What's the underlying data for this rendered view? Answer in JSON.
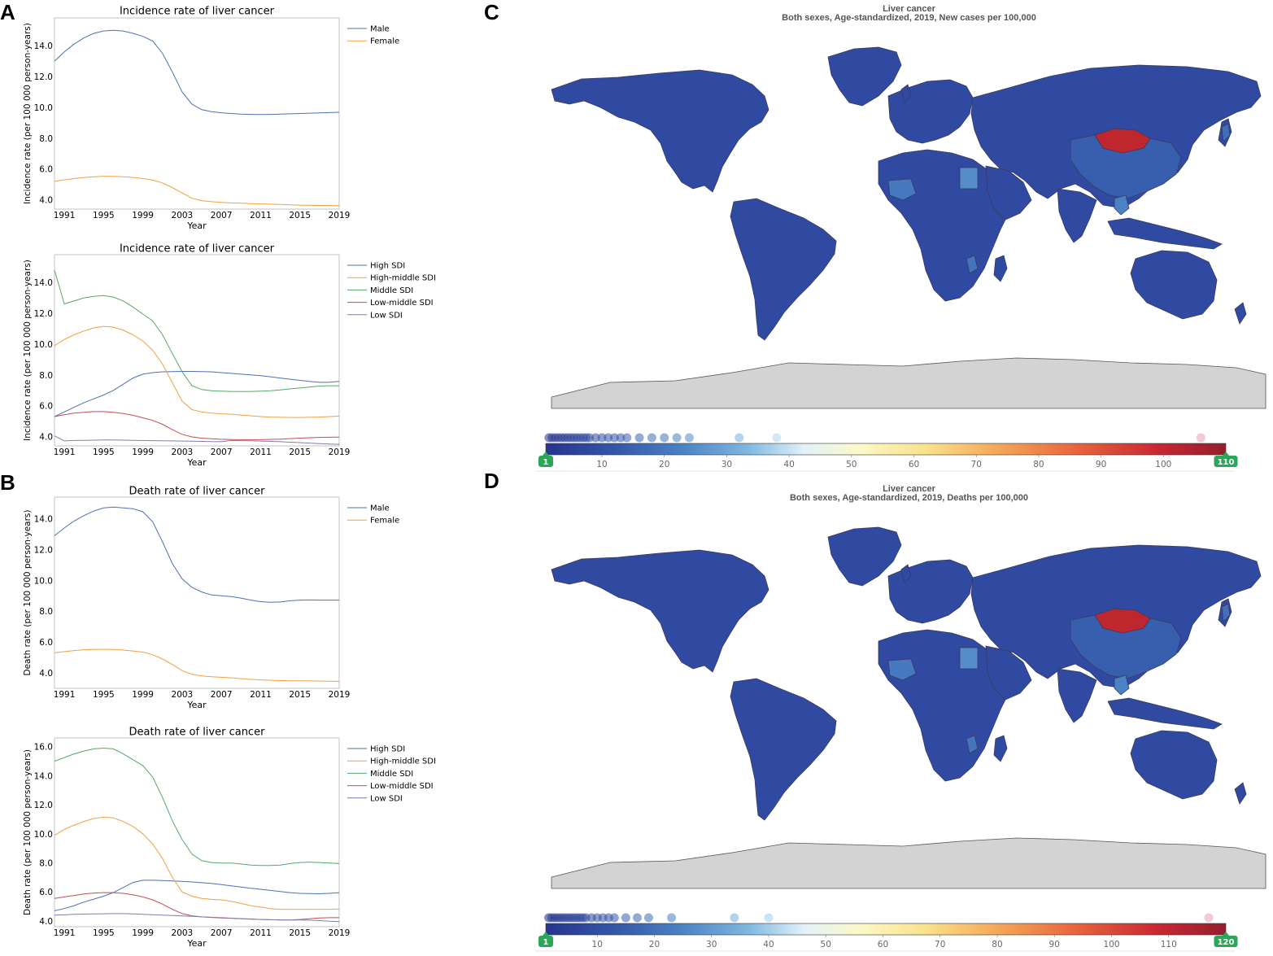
{
  "colors": {
    "high_sdi": "#4c72b0",
    "high_middle_sdi": "#f0a040",
    "middle_sdi": "#55a868",
    "low_middle_sdi": "#c44e52",
    "low_sdi": "#7f7fae",
    "male": "#4c72b0",
    "female": "#f0a040",
    "map_ocean": "#ffffff",
    "map_land_default": "#2f4aa0",
    "map_antarctica": "#d3d3d3",
    "map_mongolia": "#c0262e",
    "badge_green": "#2aa858"
  },
  "panels": {
    "A": "A",
    "B": "B",
    "C": "C",
    "D": "D"
  },
  "chart_data": [
    {
      "id": "a1",
      "type": "line",
      "title": "Incidence rate of liver cancer",
      "xlabel": "Year",
      "ylabel": "Incidence rate (per 100 000 person-years)",
      "xlim": [
        1990,
        2019
      ],
      "ylim": [
        3.4,
        15.8
      ],
      "xticks": [
        1991,
        1995,
        1999,
        2003,
        2007,
        2011,
        2015,
        2019
      ],
      "xtick_labels": [
        "1991",
        "1995",
        "1999",
        "2003",
        "2007",
        "2011",
        "2015",
        "2019"
      ],
      "yticks": [
        4,
        6,
        8,
        10,
        12,
        14
      ],
      "ytick_labels": [
        "4.0",
        "6.0",
        "8.0",
        "10.0",
        "12.0",
        "14.0"
      ],
      "legend": "top-right-outside",
      "x": [
        1990,
        1991,
        1992,
        1993,
        1994,
        1995,
        1996,
        1997,
        1998,
        1999,
        2000,
        2001,
        2002,
        2003,
        2004,
        2005,
        2006,
        2007,
        2008,
        2009,
        2010,
        2011,
        2012,
        2013,
        2014,
        2015,
        2016,
        2017,
        2018,
        2019
      ],
      "series": [
        {
          "name": "Male",
          "color": "male",
          "values": [
            13.0,
            13.6,
            14.1,
            14.5,
            14.8,
            14.95,
            15.0,
            14.95,
            14.8,
            14.6,
            14.3,
            13.5,
            12.3,
            11.0,
            10.2,
            9.85,
            9.72,
            9.65,
            9.6,
            9.56,
            9.54,
            9.53,
            9.54,
            9.56,
            9.58,
            9.6,
            9.62,
            9.64,
            9.66,
            9.68
          ]
        },
        {
          "name": "Female",
          "color": "female",
          "values": [
            5.2,
            5.3,
            5.38,
            5.45,
            5.5,
            5.52,
            5.52,
            5.5,
            5.45,
            5.38,
            5.28,
            5.1,
            4.8,
            4.45,
            4.1,
            3.95,
            3.88,
            3.84,
            3.8,
            3.78,
            3.76,
            3.74,
            3.72,
            3.7,
            3.68,
            3.66,
            3.65,
            3.64,
            3.63,
            3.62
          ]
        }
      ]
    },
    {
      "id": "a2",
      "type": "line",
      "title": "Incidence rate of liver cancer",
      "xlabel": "Year",
      "ylabel": "Incidence rate (per 100 000 person-years)",
      "xlim": [
        1990,
        2019
      ],
      "ylim": [
        3.4,
        15.8
      ],
      "xticks": [
        1991,
        1995,
        1999,
        2003,
        2007,
        2011,
        2015,
        2019
      ],
      "xtick_labels": [
        "1991",
        "1995",
        "1999",
        "2003",
        "2007",
        "2011",
        "2015",
        "2019"
      ],
      "yticks": [
        4,
        6,
        8,
        10,
        12,
        14
      ],
      "ytick_labels": [
        "4.0",
        "6.0",
        "8.0",
        "10.0",
        "12.0",
        "14.0"
      ],
      "legend": "top-right-outside",
      "x": [
        1990,
        1991,
        1992,
        1993,
        1994,
        1995,
        1996,
        1997,
        1998,
        1999,
        2000,
        2001,
        2002,
        2003,
        2004,
        2005,
        2006,
        2007,
        2008,
        2009,
        2010,
        2011,
        2012,
        2013,
        2014,
        2015,
        2016,
        2017,
        2018,
        2019
      ],
      "series": [
        {
          "name": "High SDI",
          "color": "high_sdi",
          "values": [
            5.3,
            5.6,
            5.9,
            6.2,
            6.45,
            6.7,
            7.0,
            7.4,
            7.8,
            8.05,
            8.15,
            8.2,
            8.22,
            8.23,
            8.23,
            8.22,
            8.2,
            8.15,
            8.1,
            8.05,
            8.0,
            7.95,
            7.88,
            7.8,
            7.72,
            7.65,
            7.58,
            7.52,
            7.52,
            7.58
          ]
        },
        {
          "name": "High-middle SDI",
          "color": "high_middle_sdi",
          "values": [
            9.9,
            10.3,
            10.6,
            10.85,
            11.05,
            11.15,
            11.1,
            10.9,
            10.6,
            10.2,
            9.6,
            8.7,
            7.5,
            6.3,
            5.75,
            5.6,
            5.52,
            5.48,
            5.45,
            5.4,
            5.35,
            5.3,
            5.27,
            5.25,
            5.24,
            5.24,
            5.25,
            5.27,
            5.3,
            5.33
          ]
        },
        {
          "name": "Middle SDI",
          "color": "middle_sdi",
          "values": [
            14.8,
            12.6,
            12.8,
            13.0,
            13.1,
            13.15,
            13.05,
            12.8,
            12.4,
            11.95,
            11.5,
            10.6,
            9.4,
            8.2,
            7.3,
            7.05,
            6.98,
            6.95,
            6.93,
            6.92,
            6.93,
            6.95,
            6.98,
            7.03,
            7.1,
            7.15,
            7.22,
            7.28,
            7.3,
            7.3
          ]
        },
        {
          "name": "Low-middle SDI",
          "color": "low_middle_sdi",
          "values": [
            5.3,
            5.42,
            5.52,
            5.58,
            5.62,
            5.62,
            5.58,
            5.5,
            5.38,
            5.22,
            5.05,
            4.8,
            4.45,
            4.15,
            3.98,
            3.9,
            3.86,
            3.83,
            3.81,
            3.8,
            3.8,
            3.8,
            3.82,
            3.84,
            3.87,
            3.9,
            3.93,
            3.95,
            3.96,
            3.97
          ]
        },
        {
          "name": "Low SDI",
          "color": "low_sdi",
          "values": [
            4.05,
            3.72,
            3.75,
            3.76,
            3.77,
            3.78,
            3.78,
            3.77,
            3.76,
            3.75,
            3.74,
            3.73,
            3.72,
            3.71,
            3.7,
            3.69,
            3.68,
            3.67,
            3.75,
            3.74,
            3.73,
            3.71,
            3.69,
            3.67,
            3.64,
            3.61,
            3.58,
            3.55,
            3.52,
            3.5
          ]
        }
      ]
    },
    {
      "id": "b1",
      "type": "line",
      "title": "Death rate of liver cancer",
      "xlabel": "Year",
      "ylabel": "Death rate (per 100 000 person-years)",
      "xlim": [
        1990,
        2019
      ],
      "ylim": [
        3,
        15.4
      ],
      "xticks": [
        1991,
        1995,
        1999,
        2003,
        2007,
        2011,
        2015,
        2019
      ],
      "xtick_labels": [
        "1991",
        "1995",
        "1999",
        "2003",
        "2007",
        "2011",
        "2015",
        "2019"
      ],
      "yticks": [
        4,
        6,
        8,
        10,
        12,
        14
      ],
      "ytick_labels": [
        "4.0",
        "6.0",
        "8.0",
        "10.0",
        "12.0",
        "14.0"
      ],
      "legend": "top-right-outside",
      "x": [
        1990,
        1991,
        1992,
        1993,
        1994,
        1995,
        1996,
        1997,
        1998,
        1999,
        2000,
        2001,
        2002,
        2003,
        2004,
        2005,
        2006,
        2007,
        2008,
        2009,
        2010,
        2011,
        2012,
        2013,
        2014,
        2015,
        2016,
        2017,
        2018,
        2019
      ],
      "series": [
        {
          "name": "Male",
          "color": "male",
          "values": [
            12.9,
            13.4,
            13.85,
            14.2,
            14.5,
            14.7,
            14.75,
            14.7,
            14.65,
            14.45,
            13.8,
            12.5,
            11.1,
            10.1,
            9.55,
            9.25,
            9.05,
            9.0,
            8.95,
            8.85,
            8.72,
            8.62,
            8.58,
            8.6,
            8.68,
            8.72,
            8.73,
            8.72,
            8.72,
            8.72
          ]
        },
        {
          "name": "Female",
          "color": "female",
          "values": [
            5.3,
            5.38,
            5.45,
            5.5,
            5.52,
            5.53,
            5.52,
            5.48,
            5.42,
            5.35,
            5.18,
            4.9,
            4.55,
            4.15,
            3.9,
            3.8,
            3.75,
            3.72,
            3.68,
            3.63,
            3.58,
            3.55,
            3.52,
            3.5,
            3.49,
            3.49,
            3.48,
            3.47,
            3.46,
            3.45
          ]
        }
      ]
    },
    {
      "id": "b2",
      "type": "line",
      "title": "Death rate of liver cancer",
      "xlabel": "Year",
      "ylabel": "Death rate (per 100 000 person-years)",
      "xlim": [
        1990,
        2019
      ],
      "ylim": [
        3.6,
        16.6
      ],
      "xticks": [
        1991,
        1995,
        1999,
        2003,
        2007,
        2011,
        2015,
        2019
      ],
      "xtick_labels": [
        "1991",
        "1995",
        "1999",
        "2003",
        "2007",
        "2011",
        "2015",
        "2019"
      ],
      "yticks": [
        4,
        6,
        8,
        10,
        12,
        14,
        16
      ],
      "ytick_labels": [
        "4.0",
        "6.0",
        "8.0",
        "10.0",
        "12.0",
        "14.0",
        "16.0"
      ],
      "legend": "top-right-outside",
      "x": [
        1990,
        1991,
        1992,
        1993,
        1994,
        1995,
        1996,
        1997,
        1998,
        1999,
        2000,
        2001,
        2002,
        2003,
        2004,
        2005,
        2006,
        2007,
        2008,
        2009,
        2010,
        2011,
        2012,
        2013,
        2014,
        2015,
        2016,
        2017,
        2018,
        2019
      ],
      "series": [
        {
          "name": "High SDI",
          "color": "high_sdi",
          "values": [
            4.7,
            4.85,
            5.05,
            5.3,
            5.5,
            5.7,
            5.95,
            6.3,
            6.65,
            6.8,
            6.8,
            6.78,
            6.75,
            6.72,
            6.68,
            6.63,
            6.58,
            6.5,
            6.42,
            6.33,
            6.25,
            6.18,
            6.1,
            6.02,
            5.95,
            5.9,
            5.88,
            5.87,
            5.9,
            5.95
          ]
        },
        {
          "name": "High-middle SDI",
          "color": "high_middle_sdi",
          "values": [
            9.9,
            10.3,
            10.6,
            10.85,
            11.05,
            11.15,
            11.1,
            10.85,
            10.5,
            10.0,
            9.3,
            8.3,
            7.0,
            6.0,
            5.7,
            5.55,
            5.48,
            5.45,
            5.35,
            5.2,
            5.05,
            4.95,
            4.85,
            4.8,
            4.8,
            4.8,
            4.8,
            4.8,
            4.8,
            4.82
          ]
        },
        {
          "name": "Middle SDI",
          "color": "middle_sdi",
          "values": [
            15.0,
            15.25,
            15.5,
            15.7,
            15.85,
            15.9,
            15.85,
            15.5,
            15.1,
            14.7,
            13.9,
            12.5,
            10.9,
            9.6,
            8.6,
            8.15,
            8.02,
            7.98,
            7.98,
            7.92,
            7.85,
            7.82,
            7.82,
            7.85,
            7.95,
            8.02,
            8.05,
            8.02,
            7.98,
            7.95
          ]
        },
        {
          "name": "Low-middle SDI",
          "color": "low_middle_sdi",
          "values": [
            5.55,
            5.65,
            5.75,
            5.85,
            5.92,
            5.95,
            5.95,
            5.9,
            5.8,
            5.65,
            5.45,
            5.15,
            4.8,
            4.5,
            4.35,
            4.28,
            4.24,
            4.2,
            4.18,
            4.15,
            4.12,
            4.1,
            4.08,
            4.06,
            4.07,
            4.1,
            4.15,
            4.2,
            4.22,
            4.22
          ]
        },
        {
          "name": "Low SDI",
          "color": "low_sdi",
          "values": [
            4.4,
            4.42,
            4.45,
            4.47,
            4.48,
            4.49,
            4.5,
            4.5,
            4.48,
            4.46,
            4.43,
            4.4,
            4.37,
            4.34,
            4.31,
            4.28,
            4.25,
            4.22,
            4.19,
            4.16,
            4.13,
            4.1,
            4.08,
            4.07,
            4.06,
            4.06,
            4.05,
            4.02,
            3.98,
            3.95
          ]
        }
      ]
    },
    {
      "id": "c",
      "type": "heatmap",
      "title": "Liver cancer",
      "subtitle": "Both sexes, Age-standardized, 2019, New cases per 100,000",
      "scale_min": 1,
      "scale_max": 110,
      "min_label": "1",
      "max_label": "110",
      "ticks": [
        10,
        20,
        30,
        40,
        50,
        60,
        70,
        80,
        90,
        100
      ],
      "tick_labels": [
        "10",
        "20",
        "30",
        "40",
        "50",
        "60",
        "70",
        "80",
        "90",
        "100"
      ],
      "distribution_points": [
        1.5,
        2,
        2.5,
        3,
        3.5,
        4,
        4.5,
        5,
        5.5,
        6,
        6.5,
        7,
        7.5,
        8,
        9,
        10,
        11,
        12,
        13,
        14,
        16,
        18,
        20,
        22,
        24,
        32,
        38,
        106
      ]
    },
    {
      "id": "d",
      "type": "heatmap",
      "title": "Liver cancer",
      "subtitle": "Both sexes, Age-standardized, 2019, Deaths per 100,000",
      "scale_min": 1,
      "scale_max": 120,
      "min_label": "1",
      "max_label": "120",
      "ticks": [
        10,
        20,
        30,
        40,
        50,
        60,
        70,
        80,
        90,
        100,
        110
      ],
      "tick_labels": [
        "10",
        "20",
        "30",
        "40",
        "50",
        "60",
        "70",
        "80",
        "90",
        "100",
        "110"
      ],
      "distribution_points": [
        1.5,
        2,
        2.5,
        3,
        3.5,
        4,
        4.5,
        5,
        5.5,
        6,
        6.5,
        7,
        7.5,
        8,
        9,
        10,
        11,
        12,
        13,
        15,
        17,
        19,
        23,
        34,
        40,
        117
      ]
    }
  ]
}
